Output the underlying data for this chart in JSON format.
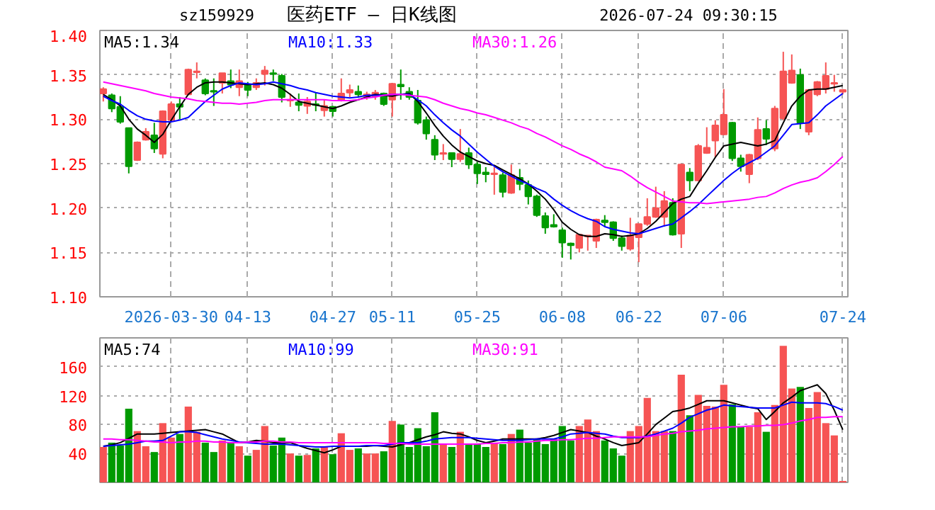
{
  "chart_data": [
    {
      "type": "candlestick",
      "title": "医药ETF — 日K线图",
      "annotations": [
        "sz159929",
        "2026-07-24 09:30:15"
      ],
      "categories": [
        null,
        null,
        null,
        null,
        null,
        null,
        null,
        null,
        "2026-03-30",
        null,
        null,
        null,
        null,
        null,
        null,
        null,
        null,
        "04-13",
        null,
        null,
        null,
        null,
        null,
        null,
        null,
        null,
        null,
        "04-27",
        null,
        null,
        null,
        null,
        null,
        null,
        "05-11",
        null,
        null,
        null,
        null,
        null,
        null,
        null,
        null,
        null,
        "05-25",
        null,
        null,
        null,
        null,
        null,
        null,
        null,
        null,
        null,
        "06-08",
        null,
        null,
        null,
        null,
        null,
        null,
        null,
        null,
        "06-22",
        null,
        null,
        null,
        null,
        null,
        null,
        null,
        null,
        null,
        "07-06",
        null,
        null,
        null,
        null,
        null,
        null,
        null,
        null,
        null,
        null,
        null,
        null,
        null,
        "07-24"
      ],
      "ohlc": [
        [
          1.329,
          1.336,
          1.32,
          1.334
        ],
        [
          1.327,
          1.329,
          1.308,
          1.312
        ],
        [
          1.314,
          1.326,
          1.295,
          1.297
        ],
        [
          1.29,
          1.29,
          1.239,
          1.247
        ],
        [
          1.254,
          1.275,
          1.253,
          1.274
        ],
        [
          1.277,
          1.29,
          1.276,
          1.286
        ],
        [
          1.282,
          1.296,
          1.262,
          1.267
        ],
        [
          1.261,
          1.31,
          1.256,
          1.309
        ],
        [
          1.299,
          1.32,
          1.298,
          1.317
        ],
        [
          1.317,
          1.325,
          1.3,
          1.314
        ],
        [
          1.328,
          1.357,
          1.327,
          1.356
        ],
        [
          1.353,
          1.364,
          1.346,
          1.354
        ],
        [
          1.344,
          1.346,
          1.327,
          1.329
        ],
        [
          1.332,
          1.346,
          1.315,
          1.331
        ],
        [
          1.341,
          1.352,
          1.329,
          1.352
        ],
        [
          1.343,
          1.356,
          1.335,
          1.339
        ],
        [
          1.336,
          1.356,
          1.326,
          1.343
        ],
        [
          1.339,
          1.342,
          1.326,
          1.333
        ],
        [
          1.336,
          1.346,
          1.333,
          1.341
        ],
        [
          1.351,
          1.36,
          1.338,
          1.355
        ],
        [
          1.352,
          1.356,
          1.343,
          1.351
        ],
        [
          1.349,
          1.351,
          1.319,
          1.325
        ],
        [
          1.321,
          1.329,
          1.314,
          1.322
        ],
        [
          1.319,
          1.329,
          1.309,
          1.316
        ],
        [
          1.315,
          1.325,
          1.306,
          1.32
        ],
        [
          1.317,
          1.33,
          1.309,
          1.316
        ],
        [
          1.31,
          1.322,
          1.303,
          1.315
        ],
        [
          1.314,
          1.315,
          1.303,
          1.309
        ],
        [
          1.321,
          1.346,
          1.32,
          1.329
        ],
        [
          1.33,
          1.339,
          1.325,
          1.333
        ],
        [
          1.331,
          1.338,
          1.325,
          1.328
        ],
        [
          1.326,
          1.331,
          1.322,
          1.328
        ],
        [
          1.326,
          1.333,
          1.322,
          1.33
        ],
        [
          1.329,
          1.33,
          1.315,
          1.317
        ],
        [
          1.322,
          1.341,
          1.303,
          1.34
        ],
        [
          1.339,
          1.356,
          1.322,
          1.337
        ],
        [
          1.331,
          1.336,
          1.322,
          1.325
        ],
        [
          1.321,
          1.333,
          1.294,
          1.296
        ],
        [
          1.299,
          1.303,
          1.277,
          1.284
        ],
        [
          1.277,
          1.282,
          1.254,
          1.26
        ],
        [
          1.261,
          1.272,
          1.254,
          1.262
        ],
        [
          1.262,
          1.262,
          1.246,
          1.255
        ],
        [
          1.255,
          1.289,
          1.252,
          1.261
        ],
        [
          1.262,
          1.268,
          1.244,
          1.249
        ],
        [
          1.249,
          1.252,
          1.227,
          1.239
        ],
        [
          1.24,
          1.246,
          1.229,
          1.238
        ],
        [
          1.238,
          1.246,
          1.215,
          1.239
        ],
        [
          1.237,
          1.24,
          1.212,
          1.218
        ],
        [
          1.217,
          1.249,
          1.216,
          1.237
        ],
        [
          1.234,
          1.244,
          1.22,
          1.227
        ],
        [
          1.226,
          1.231,
          1.204,
          1.213
        ],
        [
          1.213,
          1.215,
          1.19,
          1.192
        ],
        [
          1.191,
          1.195,
          1.171,
          1.178
        ],
        [
          1.181,
          1.193,
          1.178,
          1.179
        ],
        [
          1.175,
          1.178,
          1.144,
          1.161
        ],
        [
          1.16,
          1.161,
          1.142,
          1.158
        ],
        [
          1.155,
          1.171,
          1.15,
          1.17
        ],
        [
          1.168,
          1.169,
          1.152,
          1.169
        ],
        [
          1.163,
          1.188,
          1.155,
          1.187
        ],
        [
          1.186,
          1.192,
          1.179,
          1.184
        ],
        [
          1.184,
          1.185,
          1.163,
          1.166
        ],
        [
          1.166,
          1.169,
          1.152,
          1.157
        ],
        [
          1.154,
          1.189,
          1.152,
          1.169
        ],
        [
          1.167,
          1.182,
          1.139,
          1.182
        ],
        [
          1.182,
          1.211,
          1.18,
          1.19
        ],
        [
          1.19,
          1.224,
          1.189,
          1.2
        ],
        [
          1.19,
          1.219,
          1.179,
          1.208
        ],
        [
          1.206,
          1.211,
          1.169,
          1.17
        ],
        [
          1.171,
          1.25,
          1.155,
          1.249
        ],
        [
          1.24,
          1.245,
          1.219,
          1.231
        ],
        [
          1.231,
          1.272,
          1.23,
          1.27
        ],
        [
          1.262,
          1.291,
          1.261,
          1.268
        ],
        [
          1.276,
          1.299,
          1.257,
          1.293
        ],
        [
          1.283,
          1.334,
          1.282,
          1.305
        ],
        [
          1.296,
          1.297,
          1.253,
          1.256
        ],
        [
          1.256,
          1.26,
          1.241,
          1.247
        ],
        [
          1.238,
          1.261,
          1.228,
          1.26
        ],
        [
          1.256,
          1.302,
          1.254,
          1.288
        ],
        [
          1.289,
          1.299,
          1.271,
          1.278
        ],
        [
          1.267,
          1.315,
          1.264,
          1.312
        ],
        [
          1.301,
          1.376,
          1.299,
          1.354
        ],
        [
          1.341,
          1.373,
          1.34,
          1.355
        ],
        [
          1.35,
          1.357,
          1.289,
          1.296
        ],
        [
          1.286,
          1.334,
          1.282,
          1.333
        ],
        [
          1.328,
          1.343,
          1.326,
          1.342
        ],
        [
          1.334,
          1.364,
          1.329,
          1.349
        ],
        [
          1.34,
          1.35,
          1.331,
          1.341
        ],
        [
          1.331,
          1.334,
          1.328,
          1.333
        ]
      ],
      "colors": [
        "#f65454",
        "#009a00",
        "#009a00",
        "#009a00",
        "#f65454",
        "#f65454",
        "#009a00",
        "#f65454",
        "#f65454",
        "#009a00",
        "#f65454",
        "#f65454",
        "#009a00",
        "#009a00",
        "#f65454",
        "#009a00",
        "#f65454",
        "#009a00",
        "#f65454",
        "#f65454",
        "#009a00",
        "#009a00",
        "#f65454",
        "#009a00",
        "#f65454",
        "#009a00",
        "#f65454",
        "#009a00",
        "#f65454",
        "#f65454",
        "#009a00",
        "#f65454",
        "#f65454",
        "#009a00",
        "#f65454",
        "#009a00",
        "#009a00",
        "#009a00",
        "#009a00",
        "#009a00",
        "#f65454",
        "#009a00",
        "#f65454",
        "#009a00",
        "#009a00",
        "#009a00",
        "#f65454",
        "#009a00",
        "#f65454",
        "#009a00",
        "#009a00",
        "#009a00",
        "#009a00",
        "#009a00",
        "#009a00",
        "#009a00",
        "#f65454",
        "#f65454",
        "#f65454",
        "#009a00",
        "#009a00",
        "#009a00",
        "#f65454",
        "#f65454",
        "#f65454",
        "#f65454",
        "#f65454",
        "#009a00",
        "#f65454",
        "#009a00",
        "#f65454",
        "#f65454",
        "#f65454",
        "#f65454",
        "#009a00",
        "#009a00",
        "#f65454",
        "#f65454",
        "#009a00",
        "#f65454",
        "#f65454",
        "#f65454",
        "#009a00",
        "#f65454",
        "#f65454",
        "#f65454",
        "#f65454",
        "#f65454"
      ],
      "ylim": [
        1.1,
        1.4
      ],
      "yticks": [
        {
          "value": 1.1,
          "label": "1.10"
        },
        {
          "value": 1.15,
          "label": "1.15"
        },
        {
          "value": 1.2,
          "label": "1.20"
        },
        {
          "value": 1.25,
          "label": "1.25"
        },
        {
          "value": 1.3,
          "label": "1.30"
        },
        {
          "value": 1.35,
          "label": "1.35"
        },
        {
          "value": 1.4,
          "label": "1.40"
        }
      ],
      "grid": true,
      "series": [
        {
          "type": "line",
          "name": "MA5:1.34",
          "color": "#000000",
          "values": [
            1.328,
            1.322,
            1.315,
            1.3,
            1.289,
            1.282,
            1.274,
            1.283,
            1.299,
            1.314,
            1.328,
            1.336,
            1.341,
            1.342,
            1.342,
            1.341,
            1.34,
            1.339,
            1.34,
            1.341,
            1.339,
            1.335,
            1.328,
            1.32,
            1.318,
            1.316,
            1.314,
            1.312,
            1.315,
            1.319,
            1.322,
            1.325,
            1.328,
            1.327,
            1.326,
            1.328,
            1.329,
            1.32,
            1.307,
            1.293,
            1.281,
            1.271,
            1.263,
            1.258,
            1.253,
            1.25,
            1.248,
            1.243,
            1.238,
            1.233,
            1.227,
            1.219,
            1.21,
            1.198,
            1.184,
            1.176,
            1.17,
            1.168,
            1.168,
            1.171,
            1.17,
            1.168,
            1.169,
            1.171,
            1.177,
            1.185,
            1.195,
            1.205,
            1.21,
            1.213,
            1.228,
            1.242,
            1.257,
            1.27,
            1.272,
            1.274,
            1.272,
            1.27,
            1.272,
            1.276,
            1.296,
            1.315,
            1.326,
            1.333,
            1.334,
            1.334,
            1.336,
            1.338
          ]
        },
        {
          "type": "line",
          "name": "MA10:1.33",
          "color": "#0000ff",
          "values": [
            1.326,
            1.321,
            1.317,
            1.31,
            1.304,
            1.3,
            1.298,
            1.297,
            1.297,
            1.299,
            1.302,
            1.311,
            1.32,
            1.327,
            1.334,
            1.338,
            1.341,
            1.34,
            1.339,
            1.34,
            1.342,
            1.34,
            1.338,
            1.335,
            1.333,
            1.33,
            1.328,
            1.326,
            1.325,
            1.324,
            1.325,
            1.327,
            1.327,
            1.327,
            1.328,
            1.328,
            1.328,
            1.322,
            1.315,
            1.305,
            1.296,
            1.288,
            1.281,
            1.272,
            1.263,
            1.255,
            1.247,
            1.241,
            1.236,
            1.231,
            1.227,
            1.222,
            1.218,
            1.21,
            1.203,
            1.197,
            1.192,
            1.188,
            1.185,
            1.179,
            1.176,
            1.174,
            1.172,
            1.171,
            1.174,
            1.177,
            1.18,
            1.182,
            1.189,
            1.196,
            1.204,
            1.213,
            1.222,
            1.231,
            1.239,
            1.246,
            1.251,
            1.256,
            1.263,
            1.27,
            1.282,
            1.294,
            1.295,
            1.296,
            1.305,
            1.315,
            1.322,
            1.329
          ]
        },
        {
          "type": "line",
          "name": "MA30:1.26",
          "color": "#ff00ff",
          "values": [
            1.342,
            1.34,
            1.338,
            1.336,
            1.334,
            1.332,
            1.329,
            1.327,
            1.325,
            1.324,
            1.323,
            1.321,
            1.32,
            1.319,
            1.318,
            1.318,
            1.317,
            1.318,
            1.319,
            1.321,
            1.322,
            1.322,
            1.322,
            1.322,
            1.322,
            1.322,
            1.322,
            1.321,
            1.321,
            1.321,
            1.322,
            1.324,
            1.325,
            1.327,
            1.328,
            1.328,
            1.327,
            1.326,
            1.325,
            1.322,
            1.318,
            1.315,
            1.312,
            1.31,
            1.307,
            1.305,
            1.302,
            1.299,
            1.296,
            1.292,
            1.289,
            1.284,
            1.28,
            1.275,
            1.27,
            1.266,
            1.261,
            1.257,
            1.252,
            1.246,
            1.244,
            1.242,
            1.236,
            1.229,
            1.223,
            1.218,
            1.213,
            1.208,
            1.207,
            1.206,
            1.206,
            1.205,
            1.206,
            1.207,
            1.208,
            1.209,
            1.21,
            1.212,
            1.213,
            1.217,
            1.222,
            1.226,
            1.229,
            1.231,
            1.234,
            1.241,
            1.249,
            1.258
          ]
        }
      ]
    },
    {
      "type": "bar",
      "categories": [
        null,
        null,
        null,
        null,
        null,
        null,
        null,
        null,
        null,
        null,
        null,
        null,
        null,
        null,
        null,
        null,
        null,
        null,
        null,
        null,
        null,
        null,
        null,
        null,
        null,
        null,
        null,
        null,
        null,
        null,
        null,
        null,
        null,
        null,
        null,
        null,
        null,
        null,
        null,
        null,
        null,
        null,
        null,
        null,
        null,
        null,
        null,
        null,
        null,
        null,
        null,
        null,
        null,
        null,
        null,
        null,
        null,
        null,
        null,
        null,
        null,
        null,
        null,
        null,
        null,
        null,
        null,
        null,
        null,
        null,
        null,
        null,
        null,
        null,
        null,
        null,
        null,
        null,
        null,
        null,
        null,
        null,
        null,
        null,
        null,
        null,
        null,
        null
      ],
      "ylim": [
        0,
        200
      ],
      "yticks": [
        40,
        80,
        120,
        160
      ],
      "tick_labels": "y",
      "grid": true,
      "series": [
        {
          "type": "bar",
          "values": [
            49,
            55,
            51,
            102,
            71,
            50,
            42,
            82,
            62,
            67,
            105,
            70,
            55,
            42,
            58,
            55,
            50,
            37,
            45,
            78,
            51,
            62,
            40,
            37,
            38,
            47,
            50,
            39,
            68,
            45,
            47,
            40,
            40,
            43,
            85,
            80,
            49,
            75,
            50,
            97,
            53,
            49,
            70,
            53,
            53,
            49,
            55,
            53,
            67,
            73,
            55,
            60,
            53,
            60,
            78,
            58,
            78,
            87,
            71,
            58,
            47,
            37,
            71,
            78,
            117,
            71,
            71,
            71,
            149,
            93,
            121,
            106,
            105,
            135,
            108,
            77,
            77,
            97,
            70,
            107,
            189,
            130,
            132,
            103,
            125,
            82,
            65,
            2
          ],
          "colors": [
            "#f65454",
            "#009a00",
            "#009a00",
            "#009a00",
            "#f65454",
            "#f65454",
            "#009a00",
            "#f65454",
            "#f65454",
            "#009a00",
            "#f65454",
            "#f65454",
            "#009a00",
            "#009a00",
            "#f65454",
            "#009a00",
            "#f65454",
            "#009a00",
            "#f65454",
            "#f65454",
            "#009a00",
            "#009a00",
            "#f65454",
            "#009a00",
            "#f65454",
            "#009a00",
            "#f65454",
            "#009a00",
            "#f65454",
            "#f65454",
            "#009a00",
            "#f65454",
            "#f65454",
            "#009a00",
            "#f65454",
            "#009a00",
            "#009a00",
            "#009a00",
            "#009a00",
            "#009a00",
            "#f65454",
            "#009a00",
            "#f65454",
            "#009a00",
            "#009a00",
            "#009a00",
            "#f65454",
            "#009a00",
            "#f65454",
            "#009a00",
            "#009a00",
            "#009a00",
            "#009a00",
            "#009a00",
            "#009a00",
            "#009a00",
            "#f65454",
            "#f65454",
            "#f65454",
            "#009a00",
            "#009a00",
            "#009a00",
            "#f65454",
            "#f65454",
            "#f65454",
            "#f65454",
            "#f65454",
            "#009a00",
            "#f65454",
            "#009a00",
            "#f65454",
            "#f65454",
            "#f65454",
            "#f65454",
            "#009a00",
            "#009a00",
            "#f65454",
            "#f65454",
            "#009a00",
            "#f65454",
            "#f65454",
            "#f65454",
            "#009a00",
            "#f65454",
            "#f65454",
            "#f65454",
            "#f65454",
            "#f65454"
          ]
        },
        {
          "type": "line",
          "name": "MA5:74",
          "color": "#000000",
          "values": [
            50,
            52,
            55,
            61,
            67,
            67,
            67,
            68,
            69,
            70,
            71,
            72,
            73,
            70,
            67,
            61,
            55,
            56,
            58,
            57,
            55,
            55,
            55,
            51,
            47,
            44,
            41,
            45,
            50,
            50,
            50,
            50,
            51,
            50,
            49,
            52,
            55,
            59,
            63,
            66,
            70,
            68,
            67,
            63,
            58,
            55,
            57,
            60,
            60,
            60,
            60,
            60,
            62,
            65,
            69,
            73,
            71,
            69,
            64,
            60,
            55,
            51,
            53,
            55,
            67,
            80,
            89,
            98,
            100,
            103,
            108,
            113,
            113,
            113,
            110,
            107,
            104,
            102,
            87,
            98,
            110,
            118,
            127,
            131,
            135,
            123,
            100,
            73
          ]
        },
        {
          "type": "line",
          "name": "MA10:99",
          "color": "#0000ff",
          "values": [
            50,
            51,
            52,
            53,
            55,
            57,
            57,
            58,
            64,
            70,
            70,
            69,
            66,
            63,
            60,
            58,
            56,
            55,
            54,
            53,
            53,
            53,
            52,
            51,
            50,
            49,
            49,
            50,
            50,
            50,
            50,
            51,
            51,
            51,
            53,
            55,
            55,
            55,
            57,
            60,
            61,
            62,
            62,
            62,
            61,
            60,
            59,
            58,
            58,
            58,
            59,
            60,
            60,
            60,
            63,
            67,
            68,
            69,
            68,
            67,
            64,
            62,
            62,
            62,
            64,
            67,
            71,
            75,
            82,
            90,
            95,
            100,
            103,
            107,
            106,
            105,
            104,
            103,
            103,
            103,
            107,
            111,
            110,
            110,
            110,
            109,
            105,
            100
          ]
        },
        {
          "type": "line",
          "name": "MA30:91",
          "color": "#ff00ff",
          "values": [
            60,
            60,
            59,
            59,
            58,
            57,
            56,
            56,
            55,
            56,
            56,
            57,
            57,
            56,
            56,
            55,
            55,
            56,
            56,
            57,
            57,
            56,
            56,
            55,
            55,
            55,
            55,
            55,
            55,
            55,
            55,
            55,
            55,
            54,
            54,
            54,
            53,
            53,
            53,
            53,
            53,
            53,
            53,
            53,
            53,
            54,
            54,
            55,
            55,
            56,
            56,
            57,
            58,
            58,
            59,
            59,
            60,
            61,
            61,
            62,
            63,
            63,
            63,
            63,
            63,
            65,
            67,
            68,
            70,
            71,
            72,
            74,
            75,
            76,
            77,
            77,
            78,
            78,
            79,
            79,
            80,
            82,
            85,
            87,
            90,
            90,
            91,
            91
          ]
        }
      ]
    }
  ]
}
